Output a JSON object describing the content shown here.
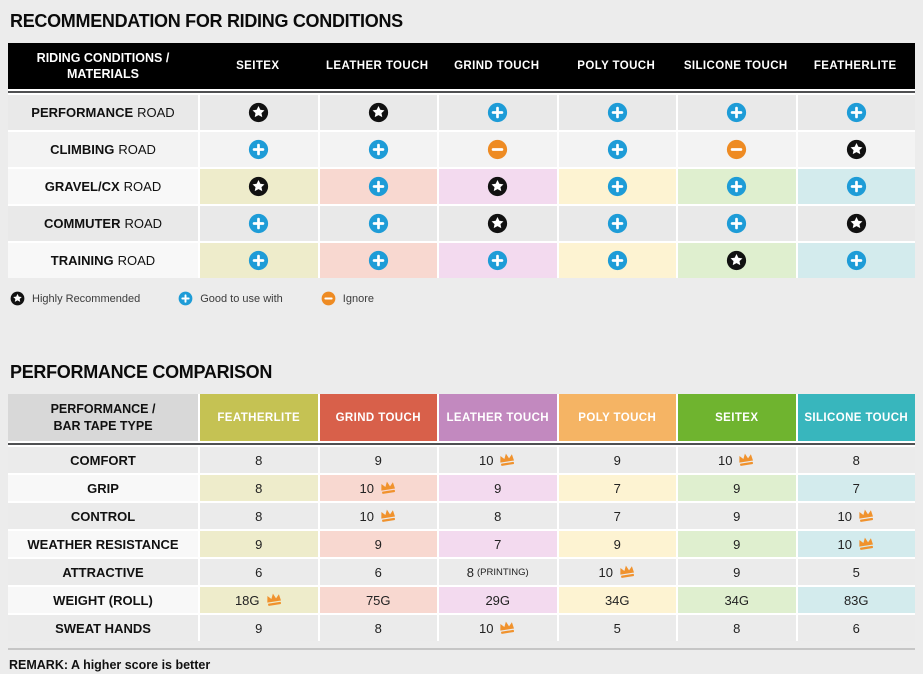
{
  "page": {
    "background": "#ececec"
  },
  "icons": {
    "star": {
      "name": "star-icon",
      "circle": "#111111",
      "glyph": "#ffffff"
    },
    "plus": {
      "name": "plus-icon",
      "circle": "#1e9cd7",
      "glyph": "#ffffff"
    },
    "minus": {
      "name": "minus-icon",
      "circle": "#ee8b23",
      "glyph": "#ffffff"
    },
    "crown": {
      "name": "crown-icon",
      "color": "#f0922d"
    }
  },
  "table1": {
    "title": "RECOMMENDATION FOR RIDING CONDITIONS",
    "corner_label": "RIDING CONDITIONS /\nMATERIALS",
    "header_bg": "#000000",
    "columns": [
      "SEITEX",
      "LEATHER TOUCH",
      "GRIND TOUCH",
      "POLY TOUCH",
      "SILICONE TOUCH",
      "FEATHERLITE"
    ],
    "cell_colors": [
      "#eeeccb",
      "#f8d8d0",
      "#f3daef",
      "#fdf3d2",
      "#dfefcf",
      "#d3ebed"
    ],
    "rows": [
      {
        "condition": "PERFORMANCE",
        "suffix": "ROAD",
        "highlighted": false,
        "row_bg": "#e9e9e9",
        "marks": [
          "star",
          "star",
          "plus",
          "plus",
          "plus",
          "plus"
        ]
      },
      {
        "condition": "CLIMBING",
        "suffix": "ROAD",
        "highlighted": false,
        "row_bg": "#f3f3f3",
        "marks": [
          "plus",
          "plus",
          "minus",
          "plus",
          "minus",
          "star"
        ]
      },
      {
        "condition": "GRAVEL/CX",
        "suffix": "ROAD",
        "highlighted": true,
        "row_bg": "#f8f8f8",
        "marks": [
          "star",
          "plus",
          "star",
          "plus",
          "plus",
          "plus"
        ]
      },
      {
        "condition": "COMMUTER",
        "suffix": "ROAD",
        "highlighted": false,
        "row_bg": "#e9e9e9",
        "marks": [
          "plus",
          "plus",
          "star",
          "plus",
          "plus",
          "star"
        ]
      },
      {
        "condition": "TRAINING",
        "suffix": "ROAD",
        "highlighted": true,
        "row_bg": "#f8f8f8",
        "marks": [
          "plus",
          "plus",
          "plus",
          "plus",
          "star",
          "plus"
        ]
      }
    ],
    "legend": [
      {
        "icon": "star",
        "label": "Highly Recommended"
      },
      {
        "icon": "plus",
        "label": "Good to use with"
      },
      {
        "icon": "minus",
        "label": "Ignore"
      }
    ]
  },
  "table2": {
    "title": "PERFORMANCE COMPARISON",
    "corner_label": "PERFORMANCE /\nBAR TAPE TYPE",
    "corner_bg": "#d8d8d8",
    "columns": [
      {
        "label": "FEATHERLITE",
        "header_color": "#c5c253",
        "cell_color": "#eeeccb"
      },
      {
        "label": "GRIND TOUCH",
        "header_color": "#d8604a",
        "cell_color": "#f8d8d0"
      },
      {
        "label": "LEATHER TOUCH",
        "header_color": "#c289bf",
        "cell_color": "#f3daef"
      },
      {
        "label": "POLY TOUCH",
        "header_color": "#f5b464",
        "cell_color": "#fdf3d2"
      },
      {
        "label": "SEITEX",
        "header_color": "#6fb42f",
        "cell_color": "#dfefcf"
      },
      {
        "label": "SILICONE TOUCH",
        "header_color": "#38b6bd",
        "cell_color": "#d3ebed"
      }
    ],
    "rows": [
      {
        "label": "COMFORT",
        "highlighted": false,
        "row_bg": "#ebebeb",
        "cells": [
          {
            "value": "8"
          },
          {
            "value": "9"
          },
          {
            "value": "10",
            "crown": true
          },
          {
            "value": "9"
          },
          {
            "value": "10",
            "crown": true
          },
          {
            "value": "8"
          }
        ]
      },
      {
        "label": "GRIP",
        "highlighted": true,
        "row_bg": "#f8f8f8",
        "cells": [
          {
            "value": "8"
          },
          {
            "value": "10",
            "crown": true
          },
          {
            "value": "9"
          },
          {
            "value": "7"
          },
          {
            "value": "9"
          },
          {
            "value": "7"
          }
        ]
      },
      {
        "label": "CONTROL",
        "highlighted": false,
        "row_bg": "#ebebeb",
        "cells": [
          {
            "value": "8"
          },
          {
            "value": "10",
            "crown": true
          },
          {
            "value": "8"
          },
          {
            "value": "7"
          },
          {
            "value": "9"
          },
          {
            "value": "10",
            "crown": true
          }
        ]
      },
      {
        "label": "WEATHER RESISTANCE",
        "highlighted": true,
        "row_bg": "#f8f8f8",
        "cells": [
          {
            "value": "9"
          },
          {
            "value": "9"
          },
          {
            "value": "7"
          },
          {
            "value": "9"
          },
          {
            "value": "9"
          },
          {
            "value": "10",
            "crown": true
          }
        ]
      },
      {
        "label": "ATTRACTIVE",
        "highlighted": false,
        "row_bg": "#ebebeb",
        "cells": [
          {
            "value": "6"
          },
          {
            "value": "6"
          },
          {
            "value": "8",
            "note": "(PRINTING)"
          },
          {
            "value": "10",
            "crown": true
          },
          {
            "value": "9"
          },
          {
            "value": "5"
          }
        ]
      },
      {
        "label": "WEIGHT (ROLL)",
        "highlighted": true,
        "row_bg": "#f8f8f8",
        "cells": [
          {
            "value": "18G",
            "crown": true
          },
          {
            "value": "75G"
          },
          {
            "value": "29G"
          },
          {
            "value": "34G"
          },
          {
            "value": "34G"
          },
          {
            "value": "83G"
          }
        ]
      },
      {
        "label": "SWEAT HANDS",
        "highlighted": false,
        "row_bg": "#ebebeb",
        "cells": [
          {
            "value": "9"
          },
          {
            "value": "8"
          },
          {
            "value": "10",
            "crown": true
          },
          {
            "value": "5"
          },
          {
            "value": "8"
          },
          {
            "value": "6"
          }
        ]
      }
    ],
    "remark": "REMARK: A higher score is better"
  },
  "chart_data": [
    {
      "type": "table",
      "title": "RECOMMENDATION FOR RIDING CONDITIONS",
      "row_header": "RIDING CONDITIONS / MATERIALS",
      "columns": [
        "SEITEX",
        "LEATHER TOUCH",
        "GRIND TOUCH",
        "POLY TOUCH",
        "SILICONE TOUCH",
        "FEATHERLITE"
      ],
      "rows": [
        "PERFORMANCE ROAD",
        "CLIMBING ROAD",
        "GRAVEL/CX ROAD",
        "COMMUTER ROAD",
        "TRAINING ROAD"
      ],
      "values": [
        [
          "highly-recommended",
          "highly-recommended",
          "good-to-use-with",
          "good-to-use-with",
          "good-to-use-with",
          "good-to-use-with"
        ],
        [
          "good-to-use-with",
          "good-to-use-with",
          "ignore",
          "good-to-use-with",
          "ignore",
          "highly-recommended"
        ],
        [
          "highly-recommended",
          "good-to-use-with",
          "highly-recommended",
          "good-to-use-with",
          "good-to-use-with",
          "good-to-use-with"
        ],
        [
          "good-to-use-with",
          "good-to-use-with",
          "highly-recommended",
          "good-to-use-with",
          "good-to-use-with",
          "highly-recommended"
        ],
        [
          "good-to-use-with",
          "good-to-use-with",
          "good-to-use-with",
          "good-to-use-with",
          "highly-recommended",
          "good-to-use-with"
        ]
      ],
      "legend": {
        "star": "Highly Recommended",
        "plus": "Good to use with",
        "minus": "Ignore"
      }
    },
    {
      "type": "table",
      "title": "PERFORMANCE COMPARISON",
      "row_header": "PERFORMANCE / BAR TAPE TYPE",
      "columns": [
        "FEATHERLITE",
        "GRIND TOUCH",
        "LEATHER TOUCH",
        "POLY TOUCH",
        "SEITEX",
        "SILICONE TOUCH"
      ],
      "rows": [
        "COMFORT",
        "GRIP",
        "CONTROL",
        "WEATHER RESISTANCE",
        "ATTRACTIVE",
        "WEIGHT (ROLL)",
        "SWEAT HANDS"
      ],
      "values": [
        [
          "8",
          "9",
          "10 (best)",
          "9",
          "10 (best)",
          "8"
        ],
        [
          "8",
          "10 (best)",
          "9",
          "7",
          "9",
          "7"
        ],
        [
          "8",
          "10 (best)",
          "8",
          "7",
          "9",
          "10 (best)"
        ],
        [
          "9",
          "9",
          "7",
          "9",
          "9",
          "10 (best)"
        ],
        [
          "6",
          "6",
          "8 (PRINTING)",
          "10 (best)",
          "9",
          "5"
        ],
        [
          "18G (best)",
          "75G",
          "29G",
          "34G",
          "34G",
          "83G"
        ],
        [
          "9",
          "8",
          "10 (best)",
          "5",
          "8",
          "6"
        ]
      ],
      "remark": "REMARK: A higher score is better"
    }
  ]
}
